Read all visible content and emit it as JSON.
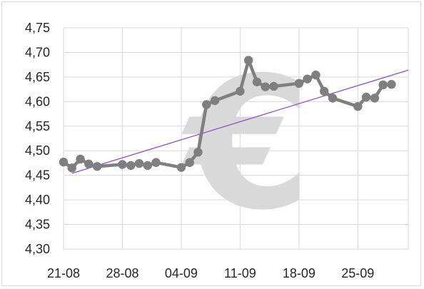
{
  "chart_data": {
    "type": "line",
    "title": "",
    "xlabel": "",
    "ylabel": "",
    "x_tick_labels": [
      "21-08",
      "28-08",
      "04-09",
      "11-09",
      "18-09",
      "25-09"
    ],
    "y_tick_labels": [
      "4,30",
      "4,35",
      "4,40",
      "4,45",
      "4,50",
      "4,55",
      "4,60",
      "4,65",
      "4,70",
      "4,75"
    ],
    "ylim": [
      4.3,
      4.75
    ],
    "xlim": [
      "2023-08-21",
      "2023-10-01"
    ],
    "grid": true,
    "legend": "none",
    "watermark_icon": "euro-sign-icon",
    "series": [
      {
        "color": "#7f7f7f",
        "marker": "circle",
        "points": [
          {
            "x": "2023-08-21",
            "y": 4.477
          },
          {
            "x": "2023-08-22",
            "y": 4.465
          },
          {
            "x": "2023-08-23",
            "y": 4.483
          },
          {
            "x": "2023-08-24",
            "y": 4.473
          },
          {
            "x": "2023-08-25",
            "y": 4.468
          },
          {
            "x": "2023-08-28",
            "y": 4.472
          },
          {
            "x": "2023-08-29",
            "y": 4.47
          },
          {
            "x": "2023-08-30",
            "y": 4.474
          },
          {
            "x": "2023-08-31",
            "y": 4.47
          },
          {
            "x": "2023-09-01",
            "y": 4.476
          },
          {
            "x": "2023-09-04",
            "y": 4.466
          },
          {
            "x": "2023-09-05",
            "y": 4.476
          },
          {
            "x": "2023-09-06",
            "y": 4.497
          },
          {
            "x": "2023-09-07",
            "y": 4.594
          },
          {
            "x": "2023-09-08",
            "y": 4.602
          },
          {
            "x": "2023-09-11",
            "y": 4.621
          },
          {
            "x": "2023-09-12",
            "y": 4.684
          },
          {
            "x": "2023-09-13",
            "y": 4.64
          },
          {
            "x": "2023-09-14",
            "y": 4.63
          },
          {
            "x": "2023-09-15",
            "y": 4.631
          },
          {
            "x": "2023-09-18",
            "y": 4.637
          },
          {
            "x": "2023-09-19",
            "y": 4.646
          },
          {
            "x": "2023-09-20",
            "y": 4.654
          },
          {
            "x": "2023-09-21",
            "y": 4.621
          },
          {
            "x": "2023-09-22",
            "y": 4.607
          },
          {
            "x": "2023-09-25",
            "y": 4.59
          },
          {
            "x": "2023-09-26",
            "y": 4.609
          },
          {
            "x": "2023-09-27",
            "y": 4.607
          },
          {
            "x": "2023-09-28",
            "y": 4.634
          },
          {
            "x": "2023-09-29",
            "y": 4.635
          }
        ]
      }
    ],
    "trendline": {
      "color": "#8a4fd1",
      "points": [
        {
          "x": "2023-08-22",
          "y": 4.454
        },
        {
          "x": "2023-10-01",
          "y": 4.664
        }
      ]
    }
  }
}
